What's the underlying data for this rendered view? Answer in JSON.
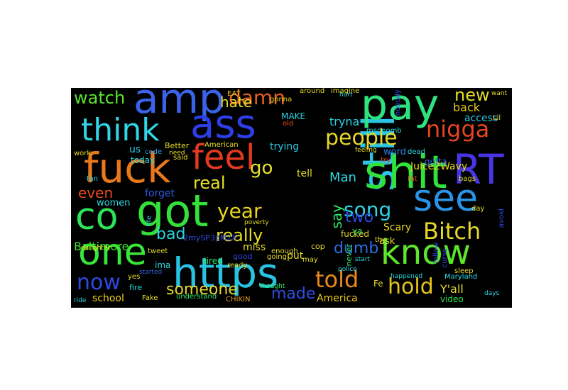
{
  "wordcloud": {
    "words": [
      {
        "text": "https",
        "color": "#29c3e2"
      },
      {
        "text": "still",
        "color": "#2ac5e4"
      },
      {
        "text": "shit",
        "color": "#2fe33a"
      },
      {
        "text": "fuck",
        "color": "#e8781c"
      },
      {
        "text": "got",
        "color": "#34e03a"
      },
      {
        "text": "pay",
        "color": "#2ee37f"
      },
      {
        "text": "amp",
        "color": "#3a63ea"
      },
      {
        "text": "ass",
        "color": "#2e3ee8"
      },
      {
        "text": "RT",
        "color": "#4a35e6"
      },
      {
        "text": "co",
        "color": "#2ee35a"
      },
      {
        "text": "one",
        "color": "#39e63a"
      },
      {
        "text": "see",
        "color": "#2994e8"
      },
      {
        "text": "know",
        "color": "#5de72c"
      },
      {
        "text": "feel",
        "color": "#e33a22"
      },
      {
        "text": "think",
        "color": "#32d4e6"
      },
      {
        "text": "Bitch",
        "color": "#e6d82a"
      },
      {
        "text": "nigga",
        "color": "#e6451f"
      },
      {
        "text": "people",
        "color": "#e6d62b"
      },
      {
        "text": "told",
        "color": "#e88a1b"
      },
      {
        "text": "hold",
        "color": "#e8c41c"
      },
      {
        "text": "now",
        "color": "#2f49e3"
      },
      {
        "text": "damn",
        "color": "#e65f20"
      },
      {
        "text": "year",
        "color": "#e8d41c"
      },
      {
        "text": "song",
        "color": "#2dd4e3"
      },
      {
        "text": "someone",
        "color": "#e6d52b"
      },
      {
        "text": "really",
        "color": "#e6e02a"
      },
      {
        "text": "hate",
        "color": "#e6dc2a"
      },
      {
        "text": "go",
        "color": "#e6e12a"
      },
      {
        "text": "real",
        "color": "#e6e12a"
      },
      {
        "text": "watch",
        "color": "#56e62b"
      },
      {
        "text": "new",
        "color": "#e6dd2a"
      },
      {
        "text": "two",
        "color": "#2e49e3"
      },
      {
        "text": "made",
        "color": "#2e4de3"
      },
      {
        "text": "dumb",
        "color": "#2b6ee3"
      },
      {
        "text": "bad",
        "color": "#2ad6e3"
      },
      {
        "text": "say",
        "color": "#2fe36a"
      },
      {
        "text": "even",
        "color": "#e84a1c"
      },
      {
        "text": "Juice2Wavy",
        "color": "#e8d81c"
      },
      {
        "text": "Baltimore",
        "color": "#3de32b"
      },
      {
        "text": "Man",
        "color": "#2ad8e3"
      },
      {
        "text": "tryna",
        "color": "#2ad2e3"
      },
      {
        "text": "back",
        "color": "#e8c61c"
      },
      {
        "text": "access",
        "color": "#2bc4e3"
      },
      {
        "text": "trying",
        "color": "#2ac8e3"
      },
      {
        "text": "Scary",
        "color": "#e8d21c"
      },
      {
        "text": "Y'all",
        "color": "#e6dc2a"
      },
      {
        "text": "school",
        "color": "#e8ce1c"
      },
      {
        "text": "America",
        "color": "#e8c81c"
      },
      {
        "text": "video",
        "color": "#2fe34e"
      },
      {
        "text": "forget",
        "color": "#2e5ce3"
      },
      {
        "text": "women",
        "color": "#2bd8e3"
      },
      {
        "text": "tell",
        "color": "#e6dc2a"
      },
      {
        "text": "miss",
        "color": "#e6df2a"
      },
      {
        "text": "us",
        "color": "#2bc6e3"
      },
      {
        "text": "ima",
        "color": "#2bd8e3"
      },
      {
        "text": "word",
        "color": "#2a7ee3"
      },
      {
        "text": "ask",
        "color": "#e6df2a"
      },
      {
        "text": "fucked",
        "color": "#e6d42a"
      },
      {
        "text": "put",
        "color": "#e6de2a"
      },
      {
        "text": "ya",
        "color": "#2fe34e"
      },
      {
        "text": "gotta",
        "color": "#2f63e3"
      },
      {
        "text": "today",
        "color": "#2ad8e3"
      },
      {
        "text": "MAKE",
        "color": "#2ad2e3"
      },
      {
        "text": "gonna",
        "color": "#e8d21c"
      },
      {
        "text": "EAT",
        "color": "#e8c81c"
      },
      {
        "text": "around",
        "color": "#e6da2a"
      },
      {
        "text": "imagine",
        "color": "#e6e02a"
      },
      {
        "text": "tired",
        "color": "#2fe35a"
      },
      {
        "text": "good",
        "color": "#2f45e3"
      },
      {
        "text": "ready",
        "color": "#e6dc2a"
      },
      {
        "text": "Fake",
        "color": "#e6dc2a"
      },
      {
        "text": "CHIKIN",
        "color": "#e8a41c"
      },
      {
        "text": "understand",
        "color": "#2fe36a"
      },
      {
        "text": "2mySP3pM2X",
        "color": "#2f49e3"
      },
      {
        "text": "tweet",
        "color": "#e6dc2a"
      },
      {
        "text": "fire",
        "color": "#2ad6e3"
      },
      {
        "text": "yes",
        "color": "#e6de2a"
      },
      {
        "text": "started",
        "color": "#2f63e3"
      },
      {
        "text": "never",
        "color": "#2fe36a"
      },
      {
        "text": "code",
        "color": "#2a9ee3"
      },
      {
        "text": "Better",
        "color": "#e6dc2a"
      },
      {
        "text": "American",
        "color": "#e6e02a"
      },
      {
        "text": "enough",
        "color": "#e6dc2a"
      },
      {
        "text": "cop",
        "color": "#e6dc2a"
      },
      {
        "text": "msdeomb",
        "color": "#2ad6e3"
      },
      {
        "text": "dead",
        "color": "#2ad6e3"
      },
      {
        "text": "fat",
        "color": "#e84a1c"
      },
      {
        "text": "sleep",
        "color": "#e6dc2a"
      },
      {
        "text": "Maryland",
        "color": "#2ad6e3"
      },
      {
        "text": "follow",
        "color": "#2f49e3"
      },
      {
        "text": "curse",
        "color": "#2f49e3"
      },
      {
        "text": "day",
        "color": "#e6dc2a"
      },
      {
        "text": "avoid",
        "color": "#2f49e3"
      },
      {
        "text": "bags",
        "color": "#e6dc2a"
      },
      {
        "text": "Lil",
        "color": "#e6dc2a"
      },
      {
        "text": "life",
        "color": "#2ad6e3"
      },
      {
        "text": "fan",
        "color": "#2ad6e3"
      },
      {
        "text": "work",
        "color": "#e6dc2a"
      },
      {
        "text": "said",
        "color": "#e6dc2a"
      },
      {
        "text": "old",
        "color": "#e84a1c"
      },
      {
        "text": "nobody",
        "color": "#2f49e3"
      },
      {
        "text": "going",
        "color": "#e6dc2a"
      },
      {
        "text": "try",
        "color": "#e84a1c"
      },
      {
        "text": "Fe",
        "color": "#e6dc2a"
      },
      {
        "text": "th",
        "color": "#e6dc2a"
      },
      {
        "text": "may",
        "color": "#e6dc2a"
      },
      {
        "text": "hurt",
        "color": "#2ad6e3"
      },
      {
        "text": "need",
        "color": "#e6dc2a"
      },
      {
        "text": "daughter",
        "color": "#e6dc2a"
      },
      {
        "text": "ride",
        "color": "#2ad6e3"
      },
      {
        "text": "thought",
        "color": "#2fe36a"
      },
      {
        "text": "poverty",
        "color": "#e6dc2a"
      },
      {
        "text": "happened",
        "color": "#2ad6e3"
      },
      {
        "text": "start",
        "color": "#2ad6e3"
      },
      {
        "text": "police",
        "color": "#2ad6e3"
      },
      {
        "text": "feeling",
        "color": "#e6dc2a"
      },
      {
        "text": "want",
        "color": "#e6dc2a"
      },
      {
        "text": "days",
        "color": "#2ad6e3"
      }
    ]
  }
}
